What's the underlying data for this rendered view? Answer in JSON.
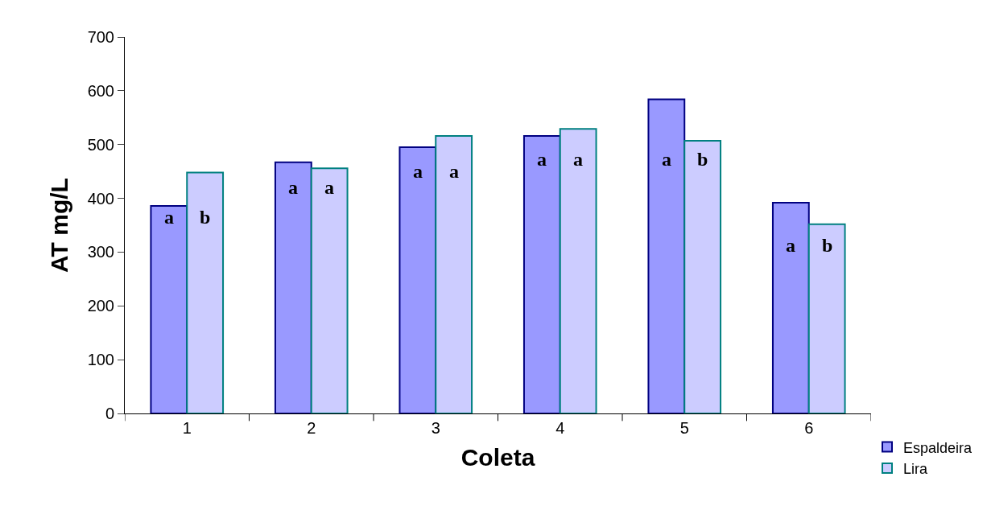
{
  "chart_data": {
    "type": "bar",
    "xlabel": "Coleta",
    "ylabel": "AT mg/L",
    "categories": [
      "1",
      "2",
      "3",
      "4",
      "5",
      "6"
    ],
    "series": [
      {
        "name": "Espaldeira",
        "color": "#9999ff",
        "values": [
          386,
          467,
          495,
          516,
          584,
          392
        ]
      },
      {
        "name": "Lira",
        "color": "#ccccff",
        "values": [
          448,
          456,
          516,
          529,
          507,
          352
        ]
      }
    ],
    "ylim": [
      0,
      700
    ],
    "yticks": [
      0,
      100,
      200,
      300,
      400,
      500,
      600,
      700
    ],
    "legend": "bottom right",
    "annotations": [
      {
        "text": "a",
        "x": "1",
        "y": 365
      },
      {
        "text": "b",
        "x": "1",
        "y": 365
      },
      {
        "text": "a",
        "x": "2",
        "y": 420
      },
      {
        "text": "a",
        "x": "2",
        "y": 420
      },
      {
        "text": "a",
        "x": "3",
        "y": 450
      },
      {
        "text": "a",
        "x": "3",
        "y": 450
      },
      {
        "text": "a",
        "x": "4",
        "y": 473
      },
      {
        "text": "a",
        "x": "4",
        "y": 473
      },
      {
        "text": "a",
        "x": "5",
        "y": 473
      },
      {
        "text": "b",
        "x": "5",
        "y": 473
      },
      {
        "text": "a",
        "x": "6",
        "y": 312
      },
      {
        "text": "b",
        "x": "6",
        "y": 312
      }
    ]
  }
}
